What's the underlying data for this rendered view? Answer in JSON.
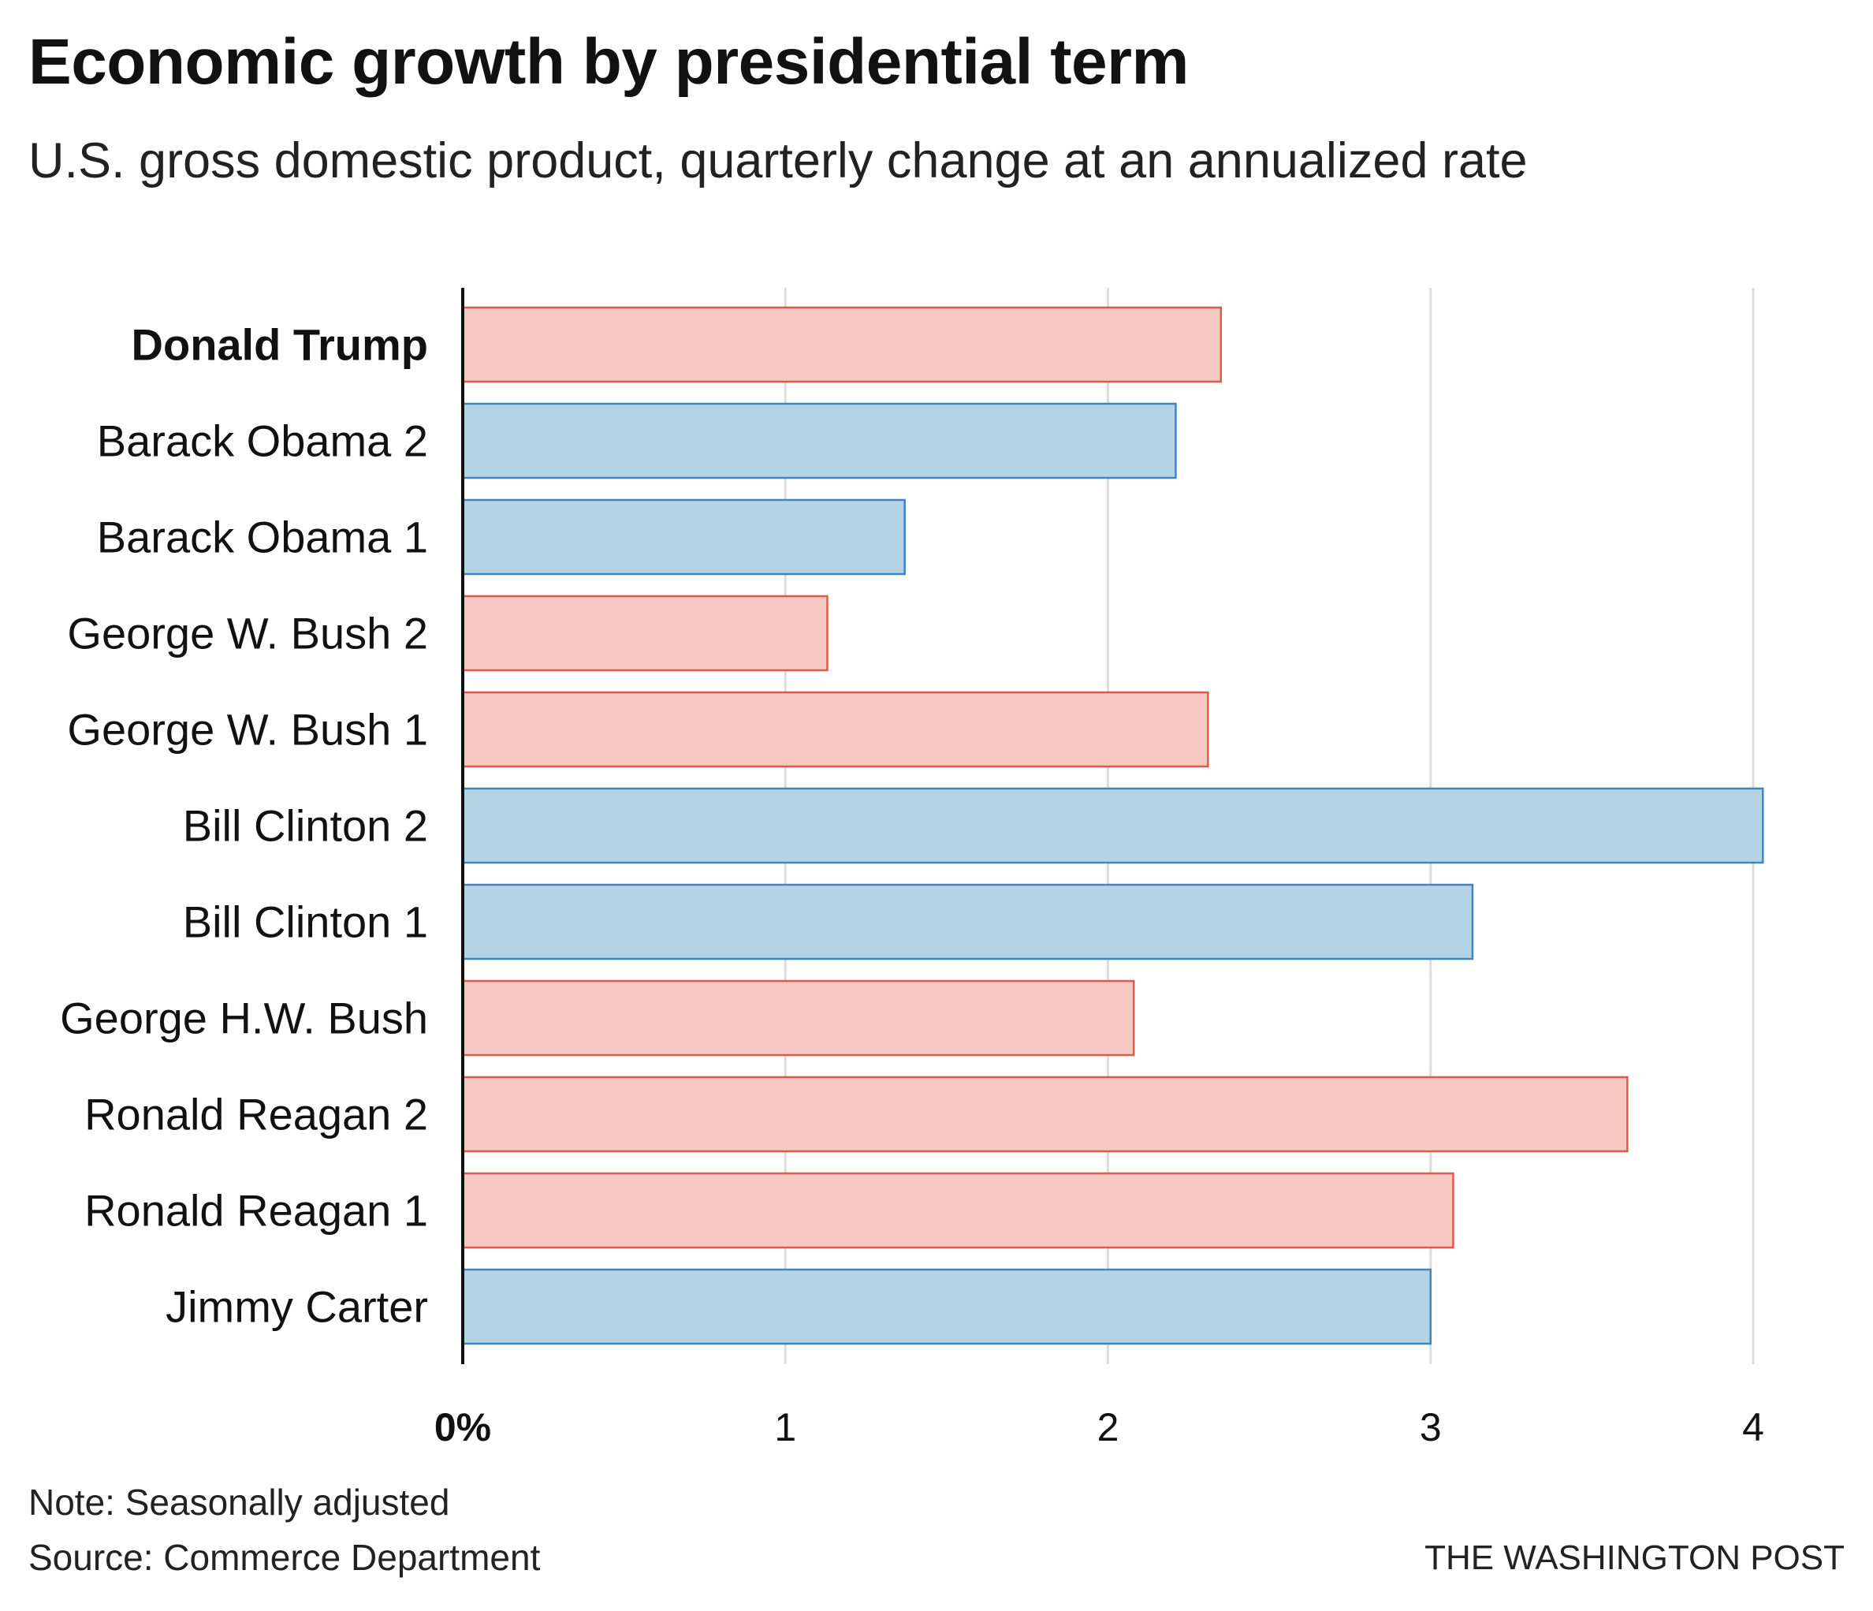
{
  "chart_data": {
    "type": "bar",
    "orientation": "horizontal",
    "title": "Economic growth by presidential term",
    "subtitle": "U.S. gross domestic product, quarterly change at an annualized rate",
    "categories": [
      "Donald Trump",
      "Barack Obama 2",
      "Barack Obama 1",
      "George W. Bush 2",
      "George W. Bush 1",
      "Bill Clinton 2",
      "Bill Clinton 1",
      "George H.W. Bush",
      "Ronald Reagan 2",
      "Ronald Reagan 1",
      "Jimmy Carter"
    ],
    "values": [
      2.35,
      2.21,
      1.37,
      1.13,
      2.31,
      4.03,
      3.13,
      2.08,
      3.61,
      3.07,
      3.0
    ],
    "party": [
      "R",
      "D",
      "D",
      "R",
      "R",
      "D",
      "D",
      "R",
      "R",
      "R",
      "D"
    ],
    "highlighted_category": "Donald Trump",
    "xlim": [
      0,
      4
    ],
    "xticks": [
      0,
      1,
      2,
      3,
      4
    ],
    "xtick_labels": [
      "0%",
      "1",
      "2",
      "3",
      "4"
    ],
    "grid": "vertical",
    "colors": {
      "R_fill": "#f8c8c3",
      "R_stroke": "#e05a4f",
      "D_fill": "#b4d4e6",
      "D_stroke": "#3f86bd",
      "grid": "#dddddd",
      "axis": "#111111"
    },
    "note": "Note: Seasonally adjusted",
    "source": "Source: Commerce Department",
    "credit": "THE WASHINGTON POST"
  }
}
